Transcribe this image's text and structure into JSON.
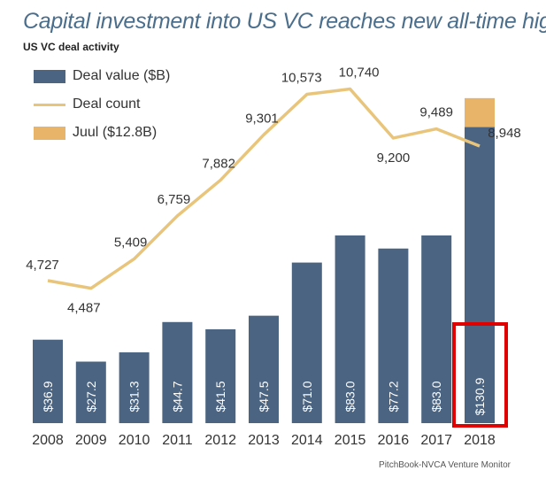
{
  "chart_data": {
    "type": "bar",
    "title": "Capital investment into US VC reaches new all-time high",
    "subtitle": "US VC deal activity",
    "categories": [
      "2008",
      "2009",
      "2010",
      "2011",
      "2012",
      "2013",
      "2014",
      "2015",
      "2016",
      "2017",
      "2018"
    ],
    "series": [
      {
        "name": "Deal value ($B)",
        "type": "bar",
        "color": "#4a6482",
        "values": [
          36.9,
          27.2,
          31.3,
          44.7,
          41.5,
          47.5,
          71.0,
          83.0,
          77.2,
          83.0,
          130.9
        ],
        "labels": [
          "$36.9",
          "$27.2",
          "$31.3",
          "$44.7",
          "$41.5",
          "$47.5",
          "$71.0",
          "$83.0",
          "$77.2",
          "$83.0",
          "$130.9"
        ]
      },
      {
        "name": "Deal count",
        "type": "line",
        "color": "#e8c57a",
        "values": [
          4727,
          4487,
          5409,
          6759,
          7882,
          9301,
          10573,
          10740,
          9200,
          9489,
          8948
        ],
        "labels": [
          "4,727",
          "4,487",
          "5,409",
          "6,759",
          "7,882",
          "9,301",
          "10,573",
          "10,740",
          "9,200",
          "9,489",
          "8,948"
        ]
      },
      {
        "name": "Juul ($12.8B)",
        "type": "stacked-bar",
        "color": "#e8b46a",
        "values": [
          0,
          0,
          0,
          0,
          0,
          0,
          0,
          0,
          0,
          0,
          12.8
        ]
      }
    ],
    "highlight": {
      "category": "2018",
      "color": "#e00000"
    },
    "source": "PitchBook-NVCA Venture Monitor"
  }
}
